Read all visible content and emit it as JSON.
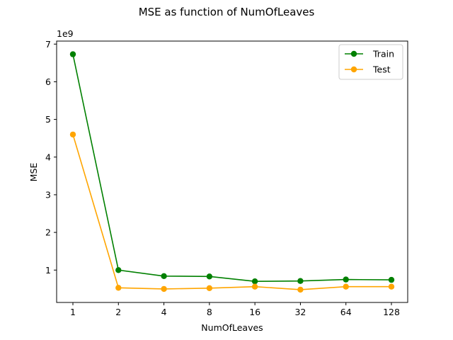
{
  "chart_data": {
    "type": "line",
    "title": "MSE as function of NumOfLeaves",
    "xlabel": "NumOfLeaves",
    "ylabel": "MSE",
    "y_offset_label": "1e9",
    "categories": [
      "1",
      "2",
      "4",
      "8",
      "16",
      "32",
      "64",
      "128"
    ],
    "y_ticks": [
      1,
      2,
      3,
      4,
      5,
      6,
      7
    ],
    "ylim": [
      0.14,
      7.08
    ],
    "y_scale_multiplier": 1000000000,
    "grid": false,
    "legend_position": "top-right",
    "series": [
      {
        "name": "Train",
        "color": "#008000",
        "values": [
          6.73,
          1.0,
          0.84,
          0.83,
          0.7,
          0.71,
          0.75,
          0.74
        ]
      },
      {
        "name": "Test",
        "color": "#ffa500",
        "values": [
          4.6,
          0.53,
          0.5,
          0.52,
          0.56,
          0.48,
          0.56,
          0.56
        ]
      }
    ]
  }
}
